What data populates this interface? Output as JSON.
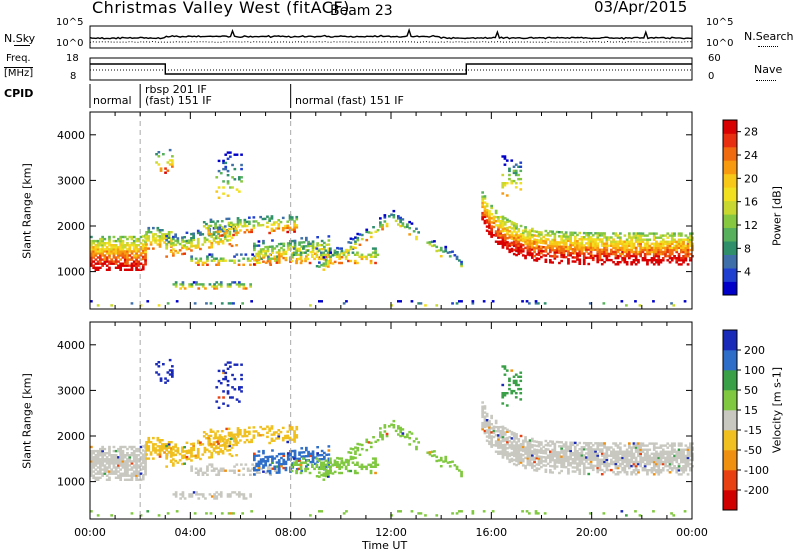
{
  "header": {
    "title": "Christmas Valley West (fitACF)",
    "beam": "Beam 23",
    "date": "03/Apr/2015"
  },
  "status_panels": {
    "nsky_label": "N.Sky",
    "nsearch_label": "N.Search",
    "noise_ticks": [
      "10^5",
      "10^0"
    ],
    "freq_label": "Freq.",
    "freq_unit": "[MHz]",
    "freq_ticks": [
      "18",
      "8"
    ],
    "nave_label": "Nave",
    "nave_ticks": [
      "60",
      "0"
    ],
    "cpid_label": "CPID",
    "cpid_segments": [
      {
        "label": "normal",
        "start_hour": 0.0,
        "end_hour": 2.0
      },
      {
        "label": "rbsp 201 IF",
        "start_hour": 2.0,
        "end_hour": 8.0
      },
      {
        "label": "(fast) 151 IF",
        "start_hour": 2.0,
        "end_hour": 8.0
      },
      {
        "label": "normal (fast) 151 IF",
        "start_hour": 8.0,
        "end_hour": 24.0
      }
    ],
    "frequency_steps": [
      {
        "start_hour": 0.0,
        "end_hour": 3.0,
        "level": "high"
      },
      {
        "start_hour": 3.0,
        "end_hour": 15.0,
        "level": "low"
      },
      {
        "start_hour": 15.0,
        "end_hour": 24.0,
        "level": "high"
      }
    ]
  },
  "chart_data": [
    {
      "type": "heatmap",
      "name": "power",
      "ylabel": "Slant Range [km]",
      "xlabel": "Time UT",
      "xlim": [
        0,
        24
      ],
      "ylim": [
        180,
        4500
      ],
      "yticks": [
        "1000",
        "2000",
        "3000",
        "4000"
      ],
      "xticks": [
        "00:00",
        "04:00",
        "08:00",
        "12:00",
        "16:00",
        "20:00",
        "00:00"
      ],
      "colorbar": {
        "label": "Power [dB]",
        "ticks": [
          "4",
          "8",
          "12",
          "16",
          "20",
          "24",
          "28"
        ],
        "range": [
          0,
          30
        ]
      }
    },
    {
      "type": "heatmap",
      "name": "velocity",
      "ylabel": "Slant Range [km]",
      "xlabel": "Time UT",
      "xlim": [
        0,
        24
      ],
      "ylim": [
        180,
        4500
      ],
      "yticks": [
        "1000",
        "2000",
        "3000",
        "4000"
      ],
      "xticks": [
        "00:00",
        "04:00",
        "08:00",
        "12:00",
        "16:00",
        "20:00",
        "00:00"
      ],
      "colorbar": {
        "label": "Velocity [m s-1]",
        "ticks": [
          "200",
          "100",
          "50",
          "15",
          "-15",
          "-50",
          "-100",
          "-200"
        ],
        "range": [
          -250,
          250
        ]
      }
    }
  ]
}
